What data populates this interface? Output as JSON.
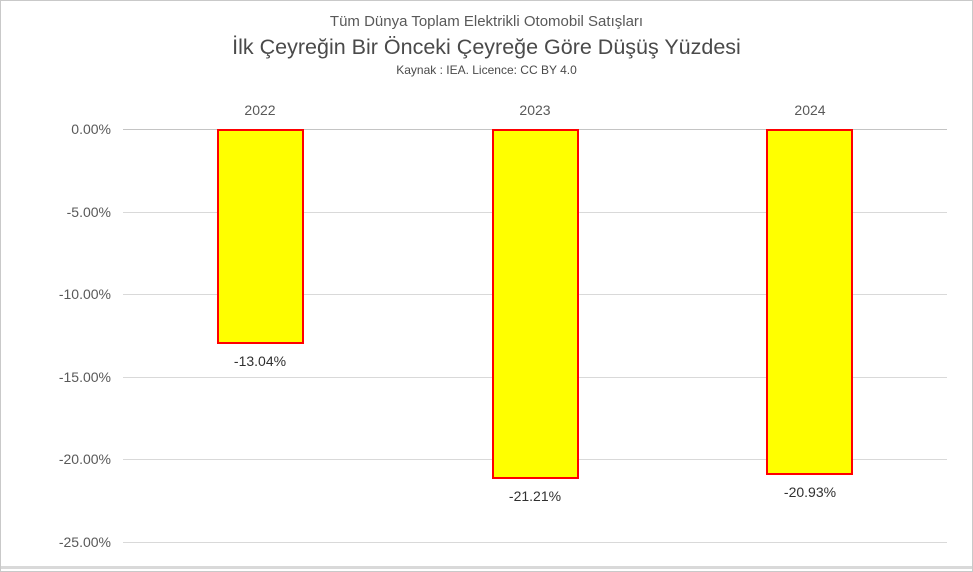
{
  "header": {
    "title_line1": "Tüm Dünya Toplam Elektrikli Otomobil Satışları",
    "title_line2": "İlk Çeyreğin Bir Önceki Çeyreğe Göre Düşüş Yüzdesi",
    "source_line": "Kaynak : IEA. Licence: CC BY 4.0"
  },
  "chart_data": {
    "type": "bar",
    "title": "Tüm Dünya Toplam Elektrikli Otomobil Satışları — İlk Çeyreğin Bir Önceki Çeyreğe Göre Düşüş Yüzdesi",
    "source": "Kaynak : IEA. Licence: CC BY 4.0",
    "categories": [
      "2022",
      "2023",
      "2024"
    ],
    "values": [
      -13.04,
      -21.21,
      -20.93
    ],
    "data_labels": [
      "-13.04%",
      "-21.21%",
      "-20.93%"
    ],
    "y_ticks": [
      "0.00%",
      "-5.00%",
      "-10.00%",
      "-15.00%",
      "-20.00%",
      "-25.00%"
    ],
    "y_tick_values": [
      0,
      -5,
      -10,
      -15,
      -20,
      -25
    ],
    "ylim": [
      0,
      -25
    ],
    "xlabel": "",
    "ylabel": "",
    "grid": true,
    "legend": "none",
    "bar_fill": "#FFFF00",
    "bar_border": "#FF0000",
    "gridline_color": "#D9D9D9",
    "zero_line_color": "#C4C4C4",
    "text_color": "#595959",
    "data_label_color": "#303030"
  }
}
